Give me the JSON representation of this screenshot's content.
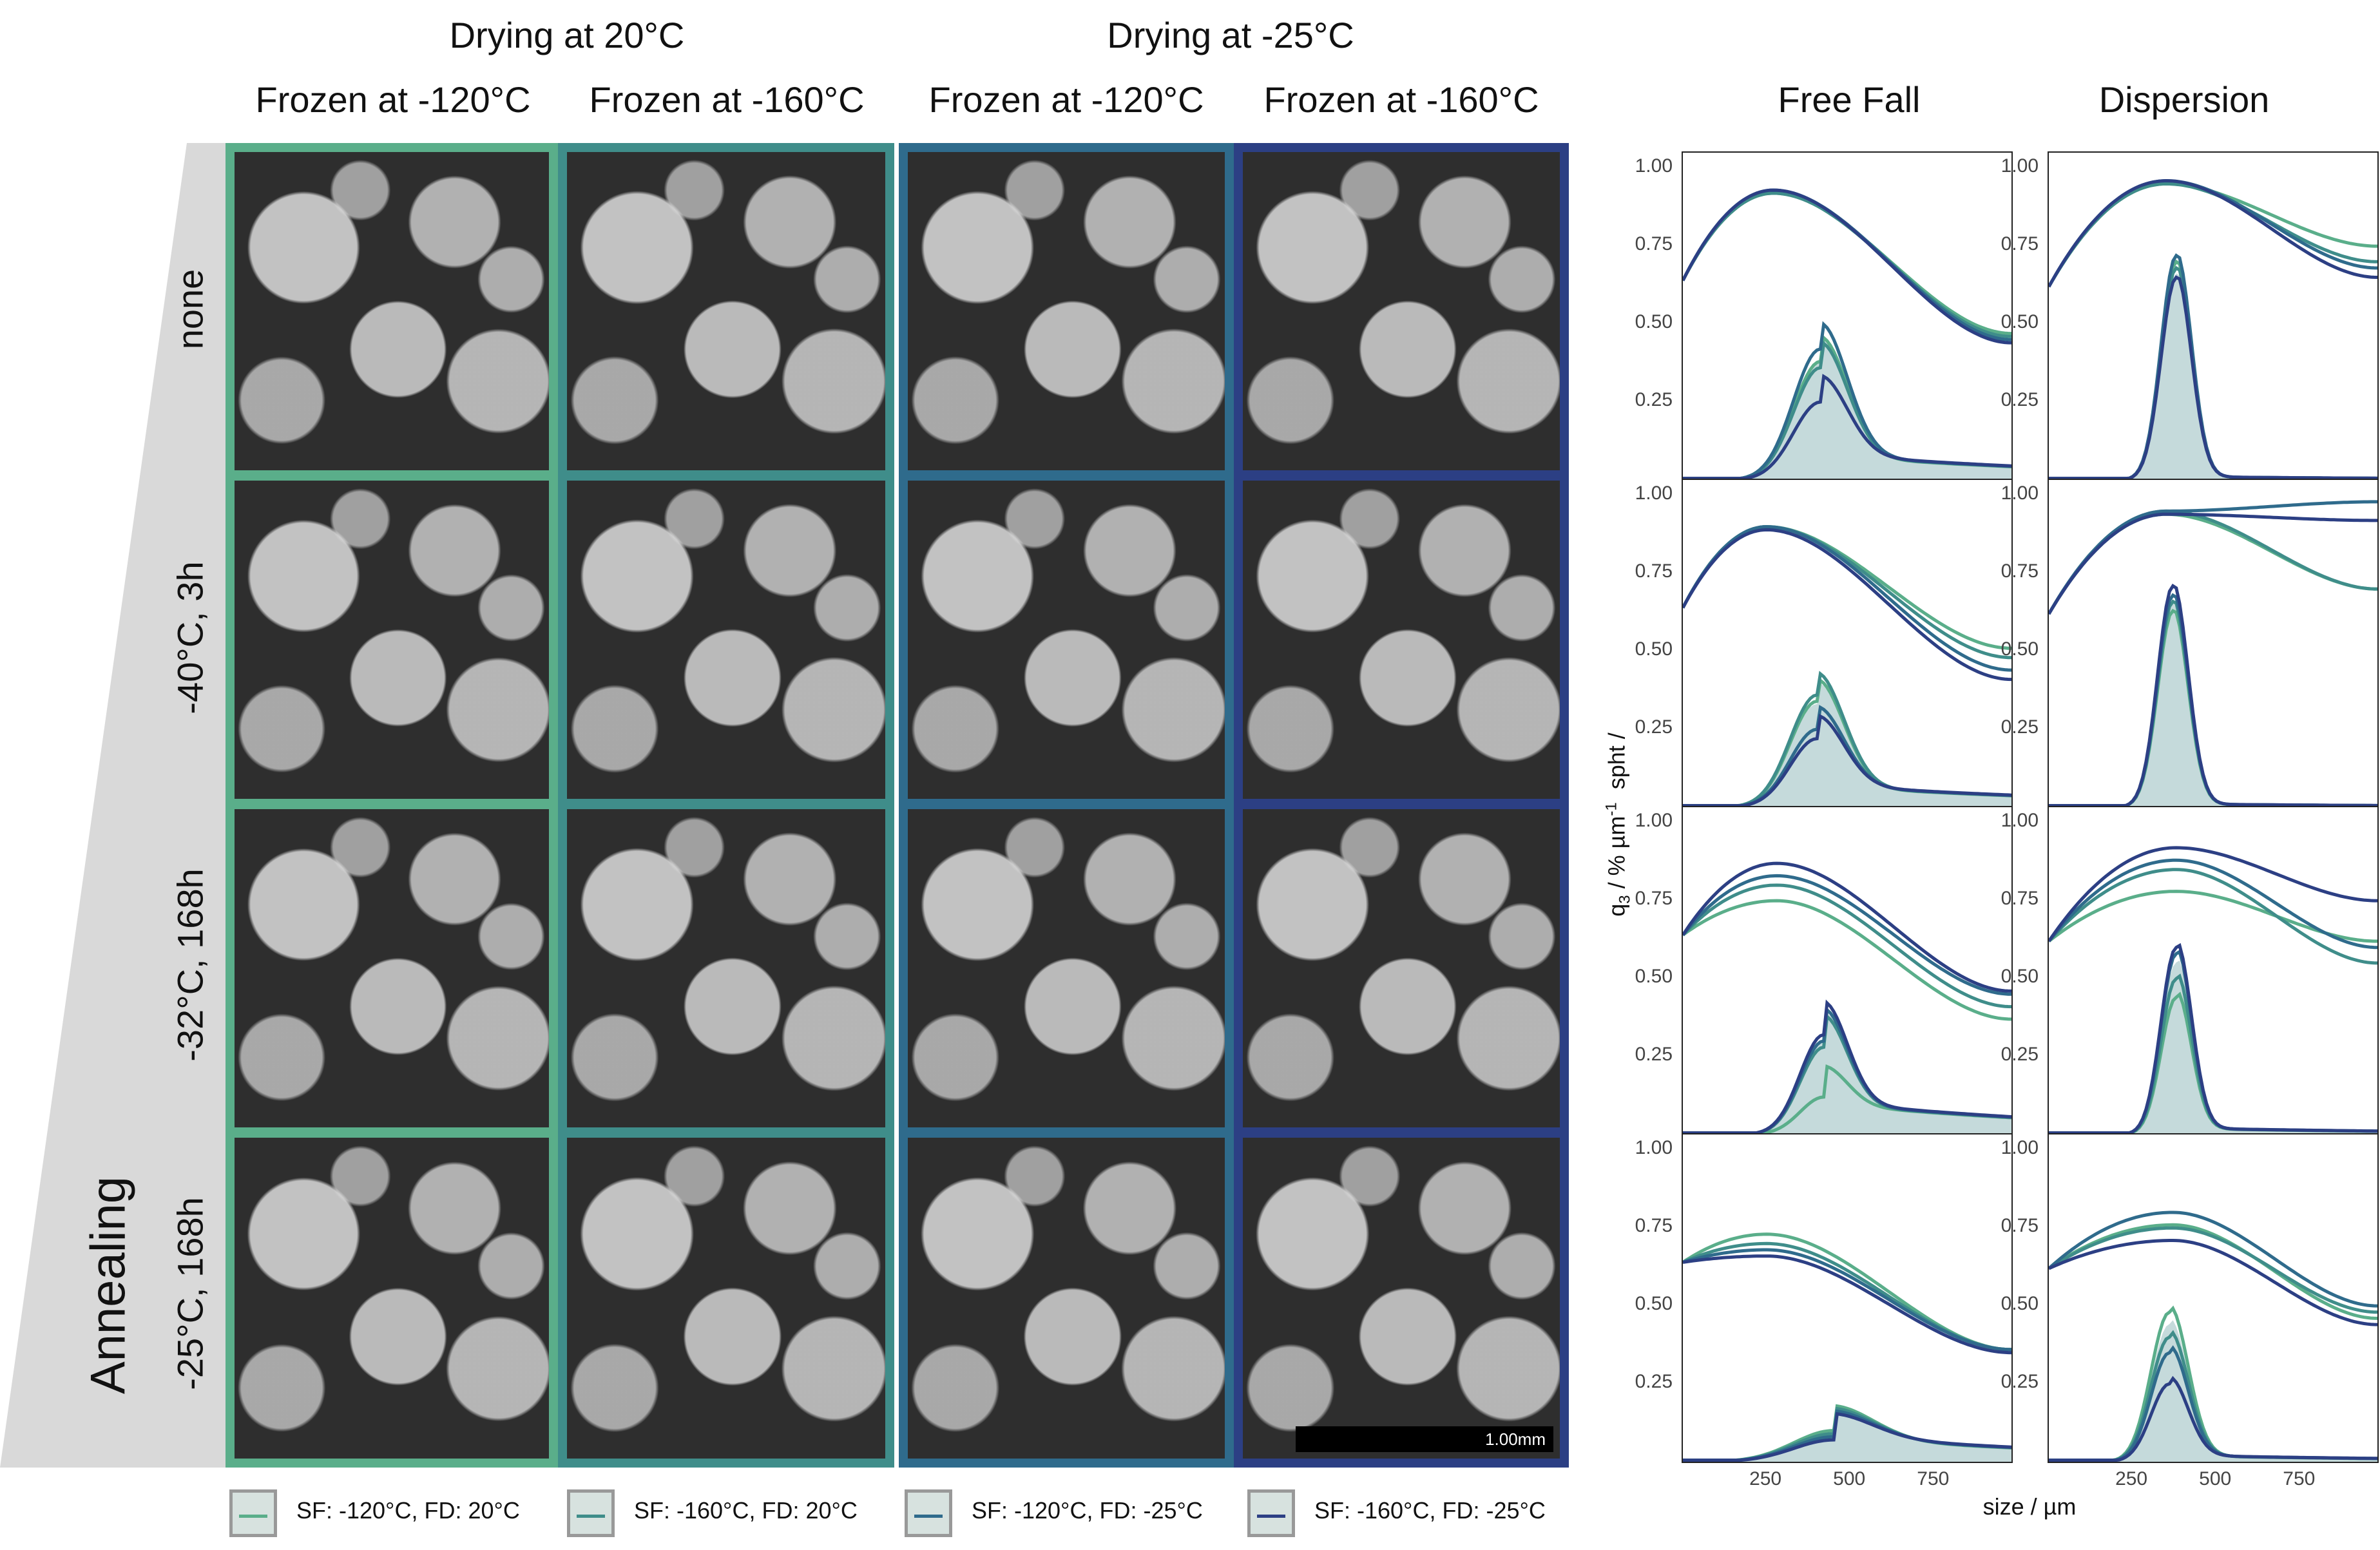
{
  "headers": {
    "drying": [
      "Drying at 20°C",
      "Drying at -25°C"
    ],
    "frozen": [
      "Frozen at -120°C",
      "Frozen at -160°C",
      "Frozen at -120°C",
      "Frozen at -160°C"
    ],
    "methods": [
      "Free Fall",
      "Dispersion"
    ]
  },
  "annealing": {
    "title": "Annealing",
    "rows": [
      "none",
      "-40°C, 3h",
      "-32°C, 168h",
      "-25°C, 168h"
    ]
  },
  "scalebar": "1.00mm",
  "colors": {
    "sf120_fd20": "#5aae8a",
    "sf160_fd20": "#3f8d8a",
    "sf120_fd25": "#2f6b8c",
    "sf160_fd25": "#2c3f84"
  },
  "legend": [
    {
      "label": "SF: -120°C, FD: 20°C",
      "color": "#5aae8a"
    },
    {
      "label": "SF: -160°C, FD: 20°C",
      "color": "#3f8d8a"
    },
    {
      "label": "SF: -120°C, FD: -25°C",
      "color": "#2f6b8c"
    },
    {
      "label": "SF: -160°C, FD: -25°C",
      "color": "#2c3f84"
    }
  ],
  "chart_data": {
    "type": "line",
    "ylabel": "q3 / % µm-1 spht /",
    "ylabel_parts": {
      "pre": "q",
      "sub": "3",
      "mid": " / % µm",
      "sup": "-1",
      "post": "  spht /"
    },
    "xlabel": "size / µm",
    "xlim": [
      0,
      980
    ],
    "ylim": [
      0,
      1.05
    ],
    "yticks": [
      "0.25",
      "0.50",
      "0.75",
      "1.00"
    ],
    "xticks": [
      "250",
      "500",
      "750"
    ],
    "facet_rows": [
      "none",
      "-40°C, 3h",
      "-32°C, 168h",
      "-25°C, 168h"
    ],
    "facet_cols": [
      "Free Fall",
      "Dispersion"
    ],
    "series_names": [
      "SF: -120°C, FD: 20°C",
      "SF: -160°C, FD: 20°C",
      "SF: -120°C, FD: -25°C",
      "SF: -160°C, FD: -25°C"
    ],
    "panels": [
      {
        "row": 0,
        "col": 0,
        "sph_peak": [
          0.92,
          0.92,
          0.93,
          0.93
        ],
        "sph_peak_x": 270,
        "sph_end": [
          0.47,
          0.46,
          0.45,
          0.44
        ],
        "q3_peak": [
          0.38,
          0.36,
          0.42,
          0.25
        ],
        "q3_peak_x": 410,
        "q3_width": 80,
        "q3_tail": 0.08
      },
      {
        "row": 0,
        "col": 1,
        "sph_peak": [
          0.95,
          0.95,
          0.96,
          0.96
        ],
        "sph_peak_x": 350,
        "sph_end": [
          0.75,
          0.7,
          0.68,
          0.65
        ],
        "q3_peak": [
          0.7,
          0.68,
          0.72,
          0.65
        ],
        "q3_peak_x": 380,
        "q3_width": 45,
        "q3_tail": 0.01
      },
      {
        "row": 1,
        "col": 0,
        "sph_peak": [
          0.9,
          0.9,
          0.9,
          0.89
        ],
        "sph_peak_x": 250,
        "sph_end": [
          0.51,
          0.48,
          0.44,
          0.41
        ],
        "q3_peak": [
          0.34,
          0.36,
          0.25,
          0.22
        ],
        "q3_peak_x": 400,
        "q3_width": 80,
        "q3_tail": 0.07
      },
      {
        "row": 1,
        "col": 1,
        "sph_peak": [
          0.94,
          0.95,
          0.95,
          0.94
        ],
        "sph_peak_x": 350,
        "sph_end": [
          0.7,
          0.7,
          0.98,
          0.92
        ],
        "q3_peak": [
          0.63,
          0.66,
          0.68,
          0.71
        ],
        "q3_peak_x": 370,
        "q3_width": 45,
        "q3_tail": 0.01
      },
      {
        "row": 2,
        "col": 0,
        "sph_peak": [
          0.75,
          0.8,
          0.83,
          0.87
        ],
        "sph_peak_x": 280,
        "sph_end": [
          0.37,
          0.41,
          0.45,
          0.46
        ],
        "q3_peak": [
          0.12,
          0.28,
          0.3,
          0.32
        ],
        "q3_peak_x": 420,
        "q3_width": 70,
        "q3_tail": 0.1
      },
      {
        "row": 2,
        "col": 1,
        "sph_peak": [
          0.78,
          0.85,
          0.88,
          0.92
        ],
        "sph_peak_x": 380,
        "sph_end": [
          0.62,
          0.55,
          0.6,
          0.75
        ],
        "q3_peak": [
          0.44,
          0.5,
          0.58,
          0.6
        ],
        "q3_peak_x": 380,
        "q3_width": 45,
        "q3_tail": 0.02
      },
      {
        "row": 3,
        "col": 0,
        "sph_peak": [
          0.73,
          0.7,
          0.68,
          0.66
        ],
        "sph_peak_x": 250,
        "sph_end": [
          0.36,
          0.36,
          0.36,
          0.35
        ],
        "q3_peak": [
          0.1,
          0.09,
          0.08,
          0.07
        ],
        "q3_peak_x": 450,
        "q3_width": 120,
        "q3_tail": 0.08
      },
      {
        "row": 3,
        "col": 1,
        "sph_peak": [
          0.76,
          0.75,
          0.8,
          0.71
        ],
        "sph_peak_x": 370,
        "sph_end": [
          0.46,
          0.48,
          0.5,
          0.44
        ],
        "q3_peak": [
          0.48,
          0.4,
          0.35,
          0.25
        ],
        "q3_peak_x": 360,
        "q3_width": 55,
        "q3_tail": 0.02
      }
    ]
  }
}
